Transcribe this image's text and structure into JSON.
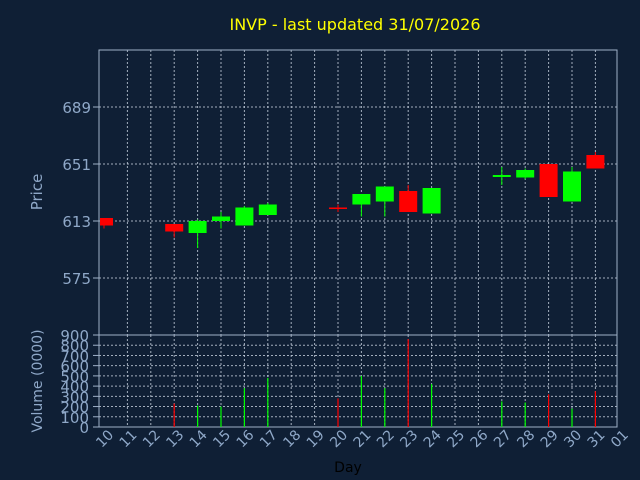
{
  "colors": {
    "background": "#0f1f35",
    "axis": "#9fb0c8",
    "grid": "#c8d2e0",
    "title": "#ffff00",
    "label": "#8fa8c8",
    "up": "#00ff00",
    "down": "#ff0000"
  },
  "chart_data": {
    "type": "candlestick",
    "title": "INVP - last updated 31/07/2026",
    "xlabel": "Day",
    "ylabel": "Price",
    "volume_label": "Volume (0000)",
    "grid": true,
    "x_ticks": [
      "10",
      "11",
      "12",
      "13",
      "14",
      "15",
      "16",
      "17",
      "18",
      "19",
      "20",
      "21",
      "22",
      "23",
      "24",
      "25",
      "26",
      "27",
      "28",
      "29",
      "30",
      "31",
      "01"
    ],
    "price_ylim": [
      537,
      727
    ],
    "price_ticks": [
      575,
      613,
      651,
      689
    ],
    "volume_ylim": [
      0,
      900
    ],
    "volume_ticks": [
      0,
      100,
      200,
      300,
      400,
      500,
      600,
      700,
      800,
      900
    ],
    "candles": [
      {
        "day": "10",
        "open": 615,
        "high": 615,
        "low": 608,
        "close": 610,
        "volume": 0
      },
      {
        "day": "13",
        "open": 611,
        "high": 611,
        "low": 602,
        "close": 606,
        "volume": 230
      },
      {
        "day": "14",
        "open": 605,
        "high": 614,
        "low": 595,
        "close": 613,
        "volume": 210
      },
      {
        "day": "15",
        "open": 613,
        "high": 619,
        "low": 608,
        "close": 616,
        "volume": 200
      },
      {
        "day": "16",
        "open": 610,
        "high": 623,
        "low": 610,
        "close": 622,
        "volume": 380
      },
      {
        "day": "17",
        "open": 617,
        "high": 625,
        "low": 617,
        "close": 624,
        "volume": 480
      },
      {
        "day": "20",
        "open": 622,
        "high": 624,
        "low": 619,
        "close": 621,
        "volume": 280
      },
      {
        "day": "21",
        "open": 624,
        "high": 631,
        "low": 616,
        "close": 631,
        "volume": 500
      },
      {
        "day": "22",
        "open": 626,
        "high": 636,
        "low": 616,
        "close": 636,
        "volume": 380
      },
      {
        "day": "23",
        "open": 633,
        "high": 637,
        "low": 619,
        "close": 619,
        "volume": 860
      },
      {
        "day": "24",
        "open": 618,
        "high": 635,
        "low": 618,
        "close": 635,
        "volume": 420
      },
      {
        "day": "27",
        "open": 643,
        "high": 649,
        "low": 637,
        "close": 643,
        "volume": 250
      },
      {
        "day": "28",
        "open": 642,
        "high": 648,
        "low": 641,
        "close": 647,
        "volume": 240
      },
      {
        "day": "29",
        "open": 651,
        "high": 651,
        "low": 629,
        "close": 629,
        "volume": 320
      },
      {
        "day": "30",
        "open": 626,
        "high": 649,
        "low": 626,
        "close": 646,
        "volume": 180
      },
      {
        "day": "31",
        "open": 657,
        "high": 659,
        "low": 648,
        "close": 648,
        "volume": 350
      }
    ]
  }
}
